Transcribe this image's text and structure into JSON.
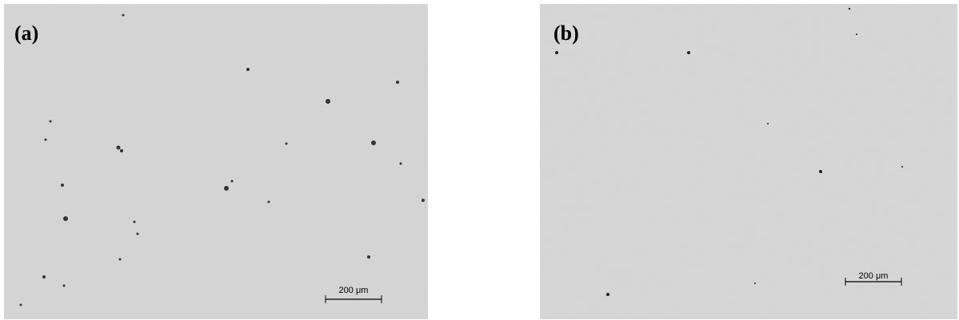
{
  "panels": [
    {
      "label": "(a)",
      "scale_bar": "200 μm"
    },
    {
      "label": "(b)",
      "scale_bar": "200 μm"
    }
  ]
}
